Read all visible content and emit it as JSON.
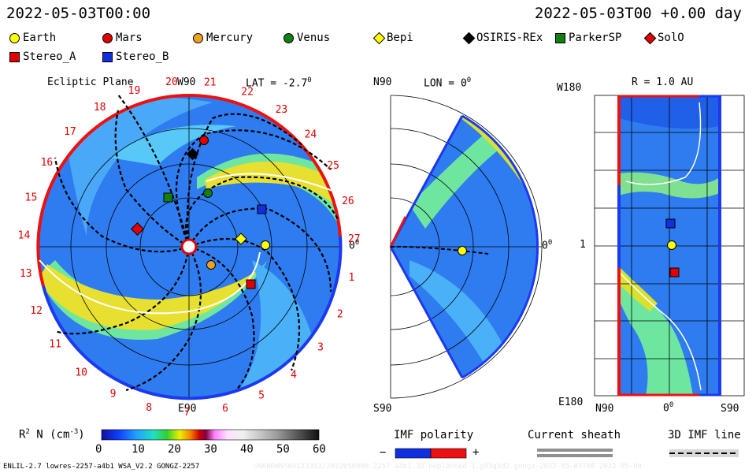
{
  "header": {
    "left_time": "2022-05-03T00:00",
    "right_time": "2022-05-03T00 +0.00 day"
  },
  "legend": [
    {
      "label": "Earth",
      "shape": "circle",
      "color": "#ffff00"
    },
    {
      "label": "Mars",
      "shape": "circle",
      "color": "#e00000"
    },
    {
      "label": "Mercury",
      "shape": "circle",
      "color": "#f0a020"
    },
    {
      "label": "Venus",
      "shape": "circle",
      "color": "#108010"
    },
    {
      "label": "Bepi",
      "shape": "diamond",
      "color": "#ffff00"
    },
    {
      "label": "OSIRIS-REx",
      "shape": "diamond",
      "color": "#000000"
    },
    {
      "label": "ParkerSP",
      "shape": "square",
      "color": "#108010"
    },
    {
      "label": "SolO",
      "shape": "diamond",
      "color": "#e00000"
    },
    {
      "label": "Stereo_A",
      "shape": "square",
      "color": "#e00000"
    },
    {
      "label": "Stereo_B",
      "shape": "square",
      "color": "#1030e0"
    }
  ],
  "panels": {
    "ecliptic": {
      "title": "Ecliptic Plane",
      "top_label": "W90",
      "bottom_label": "E90",
      "right_label": "0",
      "lat_label": "LAT = -2.7",
      "degree": "0"
    },
    "meridional": {
      "top_label": "N90",
      "lon_label": "LON = 0",
      "bottom_label": "S90",
      "right_label": "0",
      "degree": "0"
    },
    "radius": {
      "title": "R = 1.0 AU",
      "top_left": "W180",
      "mid_left": "1",
      "bottom_left": "E180",
      "x_left": "N90",
      "x_mid": "0",
      "x_right": "S90",
      "degree": "0"
    }
  },
  "colorbar": {
    "label": "R",
    "label_sup": "2",
    "label_rest": " N (cm",
    "label_exp": "-3",
    "label_end": ")",
    "ticks": [
      "0",
      "10",
      "20",
      "30",
      "40",
      "50",
      "60"
    ],
    "range": [
      0,
      60
    ]
  },
  "bottom_legend": {
    "imf": "IMF polarity",
    "minus": "−",
    "plus": "+",
    "sheath": "Current sheath",
    "imf3d": "3D IMF line"
  },
  "footer": {
    "left": "ENLIL-2.7 lowres-2257-a4b1 WSA_V2.2 GONGZ-2257",
    "right": "UNKNOWN504123353/2022050900.2257-a4b1.3D-noplanned-1.g53q5d2.gongz-2022-05-03T00 2022-05-04"
  },
  "carrington_labels": [
    "20",
    "21",
    "22",
    "23",
    "24",
    "25",
    "26",
    "27",
    "1",
    "2",
    "3",
    "4",
    "5",
    "6",
    "7",
    "8",
    "9",
    "10",
    "11",
    "12",
    "13",
    "14",
    "15",
    "16",
    "17",
    "18",
    "19"
  ],
  "chart_data": [
    {
      "type": "heatmap",
      "title": "Ecliptic Plane",
      "quantity": "R^2 N (cm^-3)",
      "range": [
        0,
        60
      ],
      "markers": [
        "Earth",
        "Mars",
        "Mercury",
        "Venus",
        "Bepi",
        "OSIRIS-REx",
        "ParkerSP",
        "SolO",
        "Stereo_A",
        "Stereo_B"
      ]
    },
    {
      "type": "heatmap",
      "title": "LON = 0",
      "markers": [
        "Earth"
      ]
    },
    {
      "type": "heatmap",
      "title": "R = 1.0 AU",
      "markers": [
        "Earth",
        "Stereo_A",
        "Stereo_B"
      ]
    }
  ]
}
